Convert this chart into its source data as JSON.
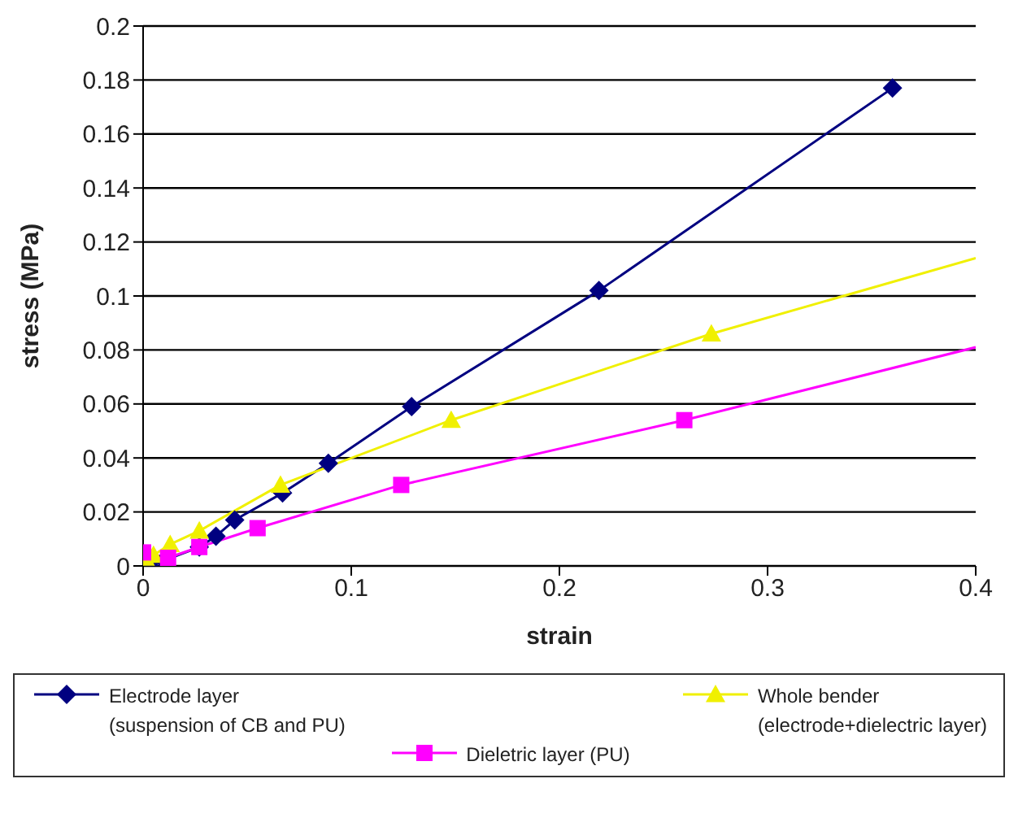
{
  "chart_data": {
    "type": "scatter",
    "xlabel": "strain",
    "ylabel": "stress (MPa)",
    "xlim": [
      0,
      0.4
    ],
    "xticks": [
      0,
      0.1,
      0.2,
      0.3,
      0.4
    ],
    "ylim": [
      0,
      0.2
    ],
    "yticks": [
      0,
      0.02,
      0.04,
      0.06,
      0.08,
      0.1,
      0.12,
      0.14,
      0.16,
      0.18,
      0.2
    ],
    "grid": "y",
    "legend": "bottom",
    "series": [
      {
        "name": "Electrode layer\n(suspension of CB and PU)",
        "type": "line",
        "marker": "diamond",
        "color": "#000080",
        "x": [
          0.003,
          0.01,
          0.027,
          0.035,
          0.044,
          0.067,
          0.089,
          0.129,
          0.219,
          0.36
        ],
        "values": [
          0.0,
          0.002,
          0.007,
          0.011,
          0.017,
          0.027,
          0.038,
          0.059,
          0.102,
          0.177
        ]
      },
      {
        "name": "Whole bender\n(electrode+dielectric layer)",
        "marker": "triangle",
        "color": "#f0f000",
        "x": [
          0.001,
          0.005,
          0.013,
          0.027,
          0.066,
          0.148,
          0.273
        ],
        "values": [
          0.003,
          0.004,
          0.008,
          0.013,
          0.03,
          0.054,
          0.086
        ]
      },
      {
        "type": "line",
        "marker": "none",
        "color": "#f0f000",
        "x": [
          0.001,
          0.005,
          0.013,
          0.027,
          0.066,
          0.148,
          0.273,
          0.4
        ],
        "values": [
          0.003,
          0.004,
          0.008,
          0.013,
          0.03,
          0.054,
          0.086,
          0.114
        ]
      },
      {
        "name": "Dieletric layer (PU)",
        "marker": "square",
        "color": "#ff00ff",
        "x": [
          0.0,
          0.012,
          0.027,
          0.055,
          0.124,
          0.26
        ],
        "values": [
          0.005,
          0.003,
          0.007,
          0.014,
          0.03,
          0.054
        ]
      },
      {
        "type": "line",
        "marker": "none",
        "color": "#ff00ff",
        "x": [
          0.0,
          0.012,
          0.027,
          0.055,
          0.124,
          0.26,
          0.4
        ],
        "values": [
          0.005,
          0.003,
          0.007,
          0.014,
          0.03,
          0.054,
          0.081
        ]
      }
    ]
  }
}
